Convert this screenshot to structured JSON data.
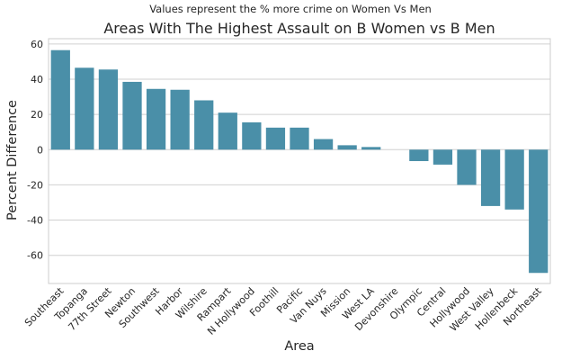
{
  "chart_data": {
    "type": "bar",
    "suptitle": "Values represent the % more crime on Women Vs Men",
    "title": "Areas With The Highest Assault on B Women vs B Men",
    "xlabel": "Area",
    "ylabel": "Percent Difference",
    "categories": [
      "Southeast",
      "Topanga",
      "77th Street",
      "Newton",
      "Southwest",
      "Harbor",
      "Wilshire",
      "Rampart",
      "N Hollywood",
      "Foothill",
      "Pacific",
      "Van Nuys",
      "Mission",
      "West LA",
      "Devonshire",
      "Olympic",
      "Central",
      "Hollywood",
      "West Valley",
      "Hollenbeck",
      "Northeast"
    ],
    "values": [
      56.5,
      46.5,
      45.5,
      38.5,
      34.5,
      34,
      28,
      21,
      15.5,
      12.5,
      12.5,
      6,
      2.5,
      1.5,
      0,
      -6.5,
      -8.5,
      -20,
      -32,
      -34,
      -70
    ],
    "ylim": [
      -76,
      63
    ],
    "yticks": [
      -60,
      -40,
      -20,
      0,
      20,
      40,
      60
    ],
    "grid": "horizontal",
    "bar_color": "#4a8fa8",
    "grid_color": "#d0d0d0",
    "spine_color": "#cccccc"
  }
}
